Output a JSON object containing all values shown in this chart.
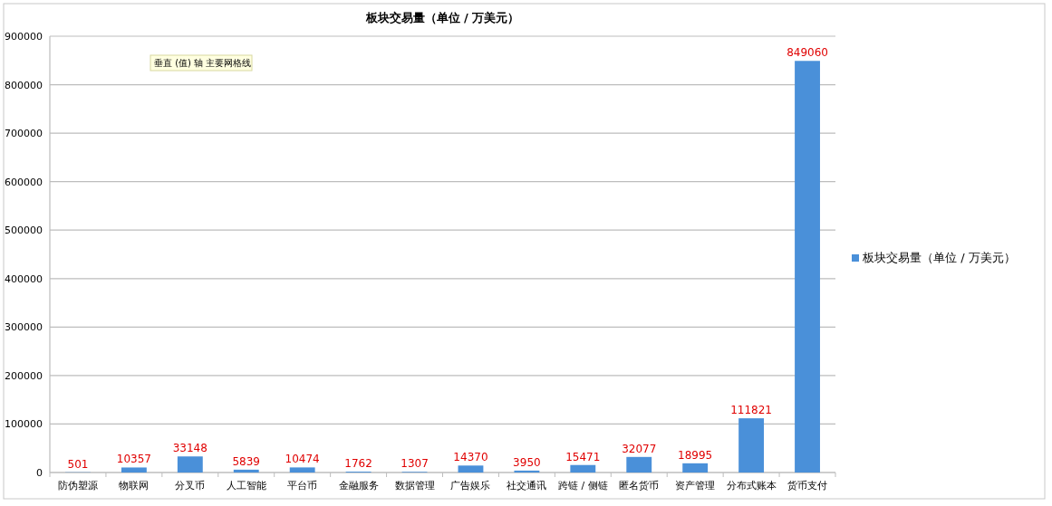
{
  "chart_data": {
    "type": "bar",
    "title": "板块交易量（单位 / 万美元）",
    "categories": [
      "防伪塑源",
      "物联网",
      "分叉币",
      "人工智能",
      "平台币",
      "金融服务",
      "数据管理",
      "广告娱乐",
      "社交通讯",
      "跨链 / 侧链",
      "匿名货币",
      "资产管理",
      "分布式账本",
      "货币支付"
    ],
    "series": [
      {
        "name": "板块交易量（单位 / 万美元）",
        "color": "#4a90d9",
        "values": [
          501,
          10357,
          33148,
          5839,
          10474,
          1762,
          1307,
          14370,
          3950,
          15471,
          32077,
          18995,
          111821,
          849060
        ]
      }
    ],
    "ylim": [
      0,
      900000
    ],
    "yticks": [
      0,
      100000,
      200000,
      300000,
      400000,
      500000,
      600000,
      700000,
      800000,
      900000
    ],
    "grid": "y",
    "legend": "right",
    "data_labels": true,
    "annotations": [
      "垂直 (值) 轴 主要网格线"
    ]
  }
}
